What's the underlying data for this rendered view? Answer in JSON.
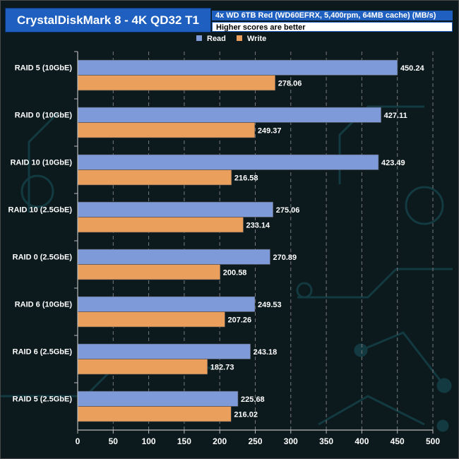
{
  "header": {
    "title": "CrystalDiskMark 8 - 4K QD32 T1",
    "subtitle": "4x WD 6TB Red (WD60EFRX, 5,400rpm, 64MB cache) (MB/s)",
    "note": "Higher scores are better"
  },
  "colors": {
    "read": "#7f9ad8",
    "write": "#ea9f5c",
    "title_bg": "#1f5fbf",
    "label_bg": "#ffffff"
  },
  "chart_data": {
    "type": "bar",
    "orientation": "horizontal",
    "title": "CrystalDiskMark 8 - 4K QD32 T1",
    "subtitle": "4x WD 6TB Red (WD60EFRX, 5,400rpm, 64MB cache) (MB/s)",
    "xlabel": "",
    "ylabel": "",
    "xlim": [
      0,
      500
    ],
    "xticks": [
      0,
      50,
      100,
      150,
      200,
      250,
      300,
      350,
      400,
      450,
      500
    ],
    "legend_position": "top-center",
    "categories": [
      "RAID 5 (10GbE)",
      "RAID 0 (10GbE)",
      "RAID 10 (10GbE)",
      "RAID 10 (2.5GbE)",
      "RAID 0 (2.5GbE)",
      "RAID 6 (10GbE)",
      "RAID 6 (2.5GbE)",
      "RAID 5 (2.5GbE)"
    ],
    "series": [
      {
        "name": "Read",
        "values": [
          450.24,
          427.11,
          423.49,
          275.06,
          270.89,
          249.53,
          243.18,
          225.68
        ]
      },
      {
        "name": "Write",
        "values": [
          278.06,
          249.37,
          216.58,
          233.14,
          200.58,
          207.26,
          182.73,
          216.02
        ]
      }
    ]
  }
}
